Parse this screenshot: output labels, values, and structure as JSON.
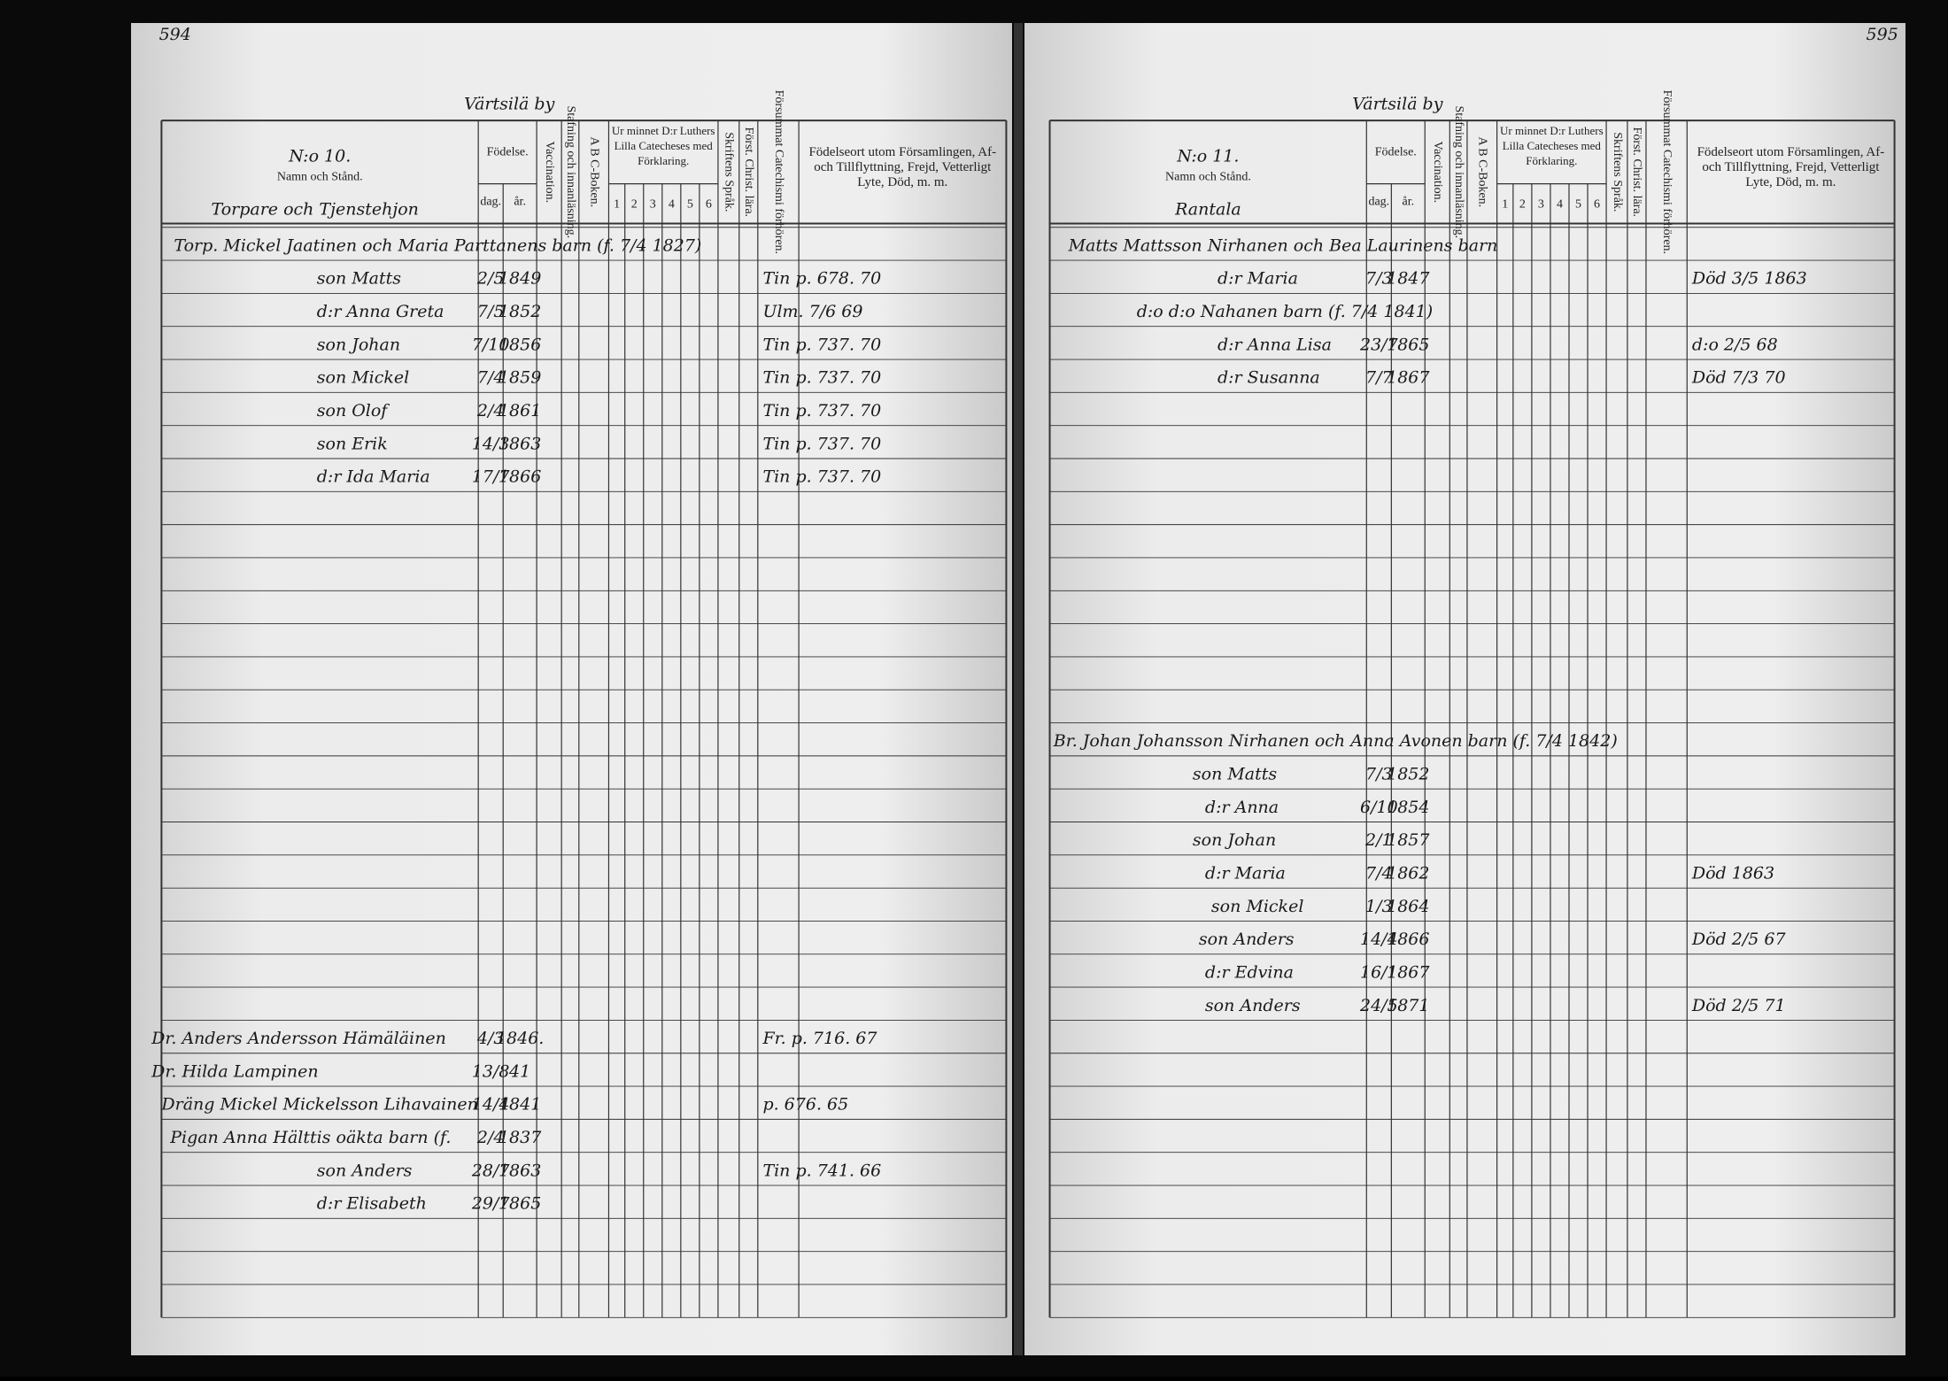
{
  "column_headers": {
    "birth": "Födelse.",
    "day": "dag.",
    "year": "år.",
    "vaccination": "Vaccination.",
    "spelling": "Stafning och innanläsning.",
    "abc_book": "A B C-Boken.",
    "catechism": "Ur minnet D:r Luthers Lilla Catecheses med Förklaring.",
    "catechism_parts": [
      "1",
      "2",
      "3",
      "4",
      "5",
      "6"
    ],
    "scripture": "Skriftens Språk.",
    "christian_doctrine": "Först. Christ. lära.",
    "missed": "Försummat Catechismi förhören.",
    "remarks": "Födelseort utom Församlingen, Af- och Tillflyttning, Frejd, Vetterligt Lyte, Död, m. m."
  },
  "left_page": {
    "page_number": "594",
    "heading": "Värtsilä by",
    "number_label": "N:o 10.",
    "name_header": "Namn och Stånd.",
    "subheading": "Torpare och Tjenstehjon",
    "entries": [
      {
        "name": "Torp. Mickel Jaatinen och Maria Parttanens barn (f. 7/4 1827)"
      },
      {
        "name": "son Matts",
        "day": "2/5",
        "year": "1849",
        "note": "Tin p. 678. 70"
      },
      {
        "name": "d:r Anna Greta",
        "day": "7/5",
        "year": "1852",
        "note": "Ulm. 7/6 69"
      },
      {
        "name": "son Johan",
        "day": "7/10",
        "year": "1856",
        "note": "Tin p. 737. 70"
      },
      {
        "name": "son Mickel",
        "day": "7/4",
        "year": "1859",
        "note": "Tin p. 737. 70"
      },
      {
        "name": "son Olof",
        "day": "2/4",
        "year": "1861",
        "note": "Tin p. 737. 70"
      },
      {
        "name": "son Erik",
        "day": "14/3",
        "year": "1863",
        "note": "Tin p. 737. 70"
      },
      {
        "name": "d:r Ida Maria",
        "day": "17/7",
        "year": "1866",
        "note": "Tin p. 737. 70"
      },
      {
        "name": "Dr. Anders Andersson Hämäläinen",
        "day": "4/3",
        "year": "1846.",
        "note": "Fr. p. 716. 67"
      },
      {
        "name": "Dr. Hilda Lampinen",
        "day": "13/8",
        "year": "41"
      },
      {
        "name": "Dräng Mickel Mickelsson Lihavainen",
        "day": "14/4",
        "year": "1841",
        "note": "p. 676. 65"
      },
      {
        "name": "Pigan Anna Hälttis oäkta barn (f.",
        "day": "2/4",
        "year": "1837"
      },
      {
        "name": "son Anders",
        "day": "28/7",
        "year": "1863",
        "note": "Tin p. 741. 66"
      },
      {
        "name": "d:r Elisabeth",
        "day": "29/7",
        "year": "1865"
      }
    ]
  },
  "right_page": {
    "page_number": "595",
    "heading": "Värtsilä by",
    "number_label": "N:o 11.",
    "name_header": "Namn och Stånd.",
    "subheading": "Rantala",
    "entries": [
      {
        "name": "Matts Mattsson Nirhanen och Bea Laurinens barn"
      },
      {
        "name": "d:r Maria",
        "day": "7/3",
        "year": "1847",
        "note": "Död 3/5 1863"
      },
      {
        "name": "d:o d:o Nahanen barn (f. 7/4 1841)"
      },
      {
        "name": "d:r Anna Lisa",
        "day": "23/7",
        "year": "1865",
        "note": "d:o 2/5 68"
      },
      {
        "name": "d:r Susanna",
        "day": "7/7",
        "year": "1867",
        "note": "Död 7/3 70"
      },
      {
        "name": "Br. Johan Johansson Nirhanen och Anna Avonen barn (f. 7/4 1842)"
      },
      {
        "name": "son Matts",
        "day": "7/3",
        "year": "1852"
      },
      {
        "name": "d:r Anna",
        "day": "6/10",
        "year": "1854"
      },
      {
        "name": "son Johan",
        "day": "2/1",
        "year": "1857"
      },
      {
        "name": "d:r Maria",
        "day": "7/4",
        "year": "1862",
        "note": "Död 1863"
      },
      {
        "name": "son Mickel",
        "day": "1/3",
        "year": "1864"
      },
      {
        "name": "son Anders",
        "day": "14/4",
        "year": "1866",
        "note": "Död 2/5 67"
      },
      {
        "name": "d:r Edvina",
        "day": "16/1",
        "year": "1867"
      },
      {
        "name": "son Anders",
        "day": "24/5",
        "year": "1871",
        "note": "Död 2/5 71"
      }
    ]
  }
}
